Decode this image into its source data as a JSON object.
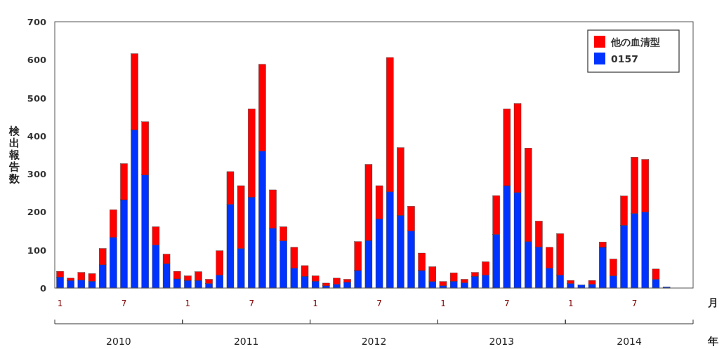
{
  "chart_data": {
    "type": "bar",
    "stacked": true,
    "ylabel": "検出報告数",
    "xlabel": "月",
    "categories": [
      "1",
      null,
      null,
      null,
      null,
      null,
      "7",
      null,
      null,
      null,
      null,
      null,
      "1",
      null,
      null,
      null,
      null,
      null,
      "7",
      null,
      null,
      null,
      null,
      null,
      "1",
      null,
      null,
      null,
      null,
      null,
      "7",
      null,
      null,
      null,
      null,
      null,
      "1",
      null,
      null,
      null,
      null,
      null,
      "7",
      null,
      null,
      null,
      null,
      null,
      "1",
      null,
      null,
      null,
      null,
      null,
      "7",
      null,
      null,
      null,
      null,
      null
    ],
    "series": [
      {
        "name": "0157",
        "color": "#0033ff",
        "values": [
          29,
          20,
          21,
          18,
          61,
          133,
          232,
          416,
          297,
          113,
          64,
          24,
          20,
          20,
          12,
          34,
          220,
          104,
          239,
          360,
          157,
          124,
          52,
          31,
          18,
          6,
          10,
          15,
          46,
          125,
          182,
          253,
          191,
          150,
          46,
          17,
          6,
          18,
          14,
          31,
          34,
          141,
          269,
          251,
          122,
          108,
          52,
          34,
          12,
          8,
          10,
          107,
          32,
          165,
          196,
          200,
          23,
          3,
          null,
          null
        ]
      },
      {
        "name": "他の血清型",
        "color": "#ff0000",
        "values": [
          15,
          6,
          20,
          20,
          43,
          73,
          95,
          200,
          140,
          48,
          25,
          20,
          12,
          23,
          11,
          64,
          86,
          165,
          232,
          228,
          101,
          37,
          55,
          28,
          14,
          7,
          16,
          8,
          76,
          200,
          87,
          353,
          178,
          65,
          46,
          39,
          11,
          22,
          9,
          10,
          35,
          102,
          202,
          234,
          246,
          68,
          55,
          109,
          8,
          null,
          10,
          14,
          44,
          77,
          148,
          138,
          27,
          null,
          null,
          null
        ]
      }
    ],
    "annotations": [
      "2010",
      "2011",
      "2012",
      "2013",
      "2014",
      "年"
    ],
    "ylim": [
      0,
      700
    ],
    "yticks": [
      0,
      100,
      200,
      300,
      400,
      500,
      600,
      700
    ],
    "legend": "top right",
    "grid": false
  }
}
